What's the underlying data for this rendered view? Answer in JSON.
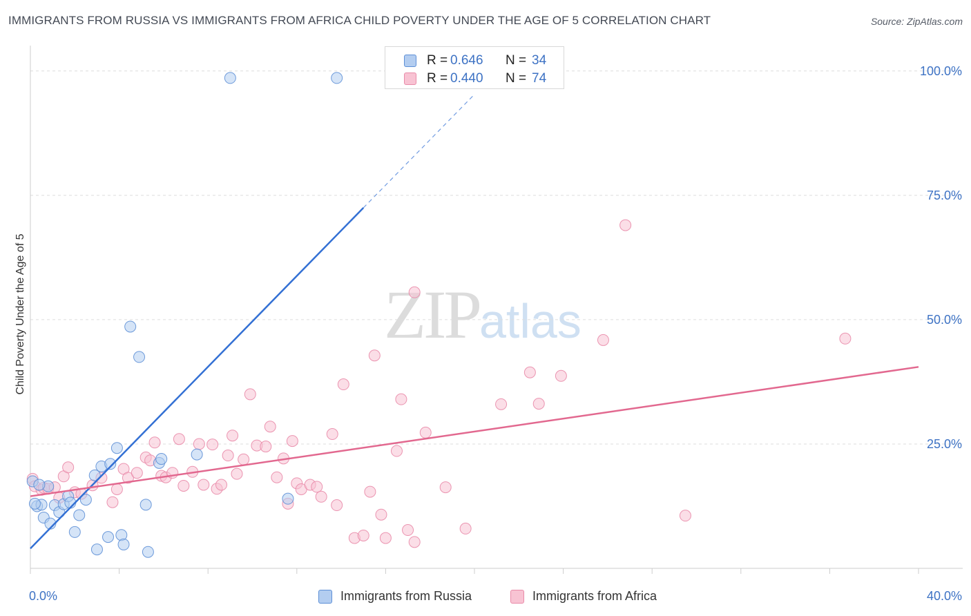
{
  "title": "IMMIGRANTS FROM RUSSIA VS IMMIGRANTS FROM AFRICA CHILD POVERTY UNDER THE AGE OF 5 CORRELATION CHART",
  "source": "Source: ZipAtlas.com",
  "watermark": {
    "zip": "ZIP",
    "atlas": "atlas"
  },
  "colors": {
    "russia_fill": "#b3cdf0",
    "russia_stroke": "#5d8fd6",
    "russia_line": "#3370d4",
    "africa_fill": "#f8c3d3",
    "africa_stroke": "#e98aa8",
    "africa_line": "#e2688f",
    "value_text": "#3d72c4",
    "grid": "#dddddd"
  },
  "legend_top": [
    {
      "series": "russia",
      "r_label": "R =",
      "r_value": "0.646",
      "n_label": "N =",
      "n_value": "34"
    },
    {
      "series": "africa",
      "r_label": "R =",
      "r_value": "0.440",
      "n_label": "N =",
      "n_value": "74"
    }
  ],
  "chart_data": {
    "type": "scatter",
    "title": "IMMIGRANTS FROM RUSSIA VS IMMIGRANTS FROM AFRICA CHILD POVERTY UNDER THE AGE OF 5 CORRELATION CHART",
    "xlabel": "",
    "ylabel": "Child Poverty Under the Age of 5",
    "xlim": [
      0,
      40
    ],
    "ylim": [
      0,
      104
    ],
    "x_tick_labels": [
      {
        "value": 0,
        "label": "0.0%"
      },
      {
        "value": 40,
        "label": "40.0%"
      }
    ],
    "y_tick_labels": [
      {
        "value": 25,
        "label": "25.0%"
      },
      {
        "value": 50,
        "label": "50.0%"
      },
      {
        "value": 75,
        "label": "75.0%"
      },
      {
        "value": 100,
        "label": "100.0%"
      }
    ],
    "grid": true,
    "legend_position": "bottom-center",
    "series": [
      {
        "name": "Immigrants from Russia",
        "key": "russia",
        "R": 0.646,
        "N": 34,
        "trend": {
          "x0": 0,
          "y0": 4,
          "x1": 15,
          "y1": 72.5,
          "dash_to_x": 20,
          "dash_to_y": 95.3
        },
        "points": [
          [
            0.1,
            17.5
          ],
          [
            0.3,
            12.5
          ],
          [
            0.5,
            12.8
          ],
          [
            0.6,
            10.2
          ],
          [
            0.8,
            16.5
          ],
          [
            0.9,
            9.0
          ],
          [
            1.1,
            12.7
          ],
          [
            1.3,
            11.3
          ],
          [
            1.5,
            12.9
          ],
          [
            1.7,
            14.5
          ],
          [
            1.8,
            13.2
          ],
          [
            2.0,
            7.3
          ],
          [
            2.2,
            10.7
          ],
          [
            2.5,
            13.8
          ],
          [
            2.9,
            18.7
          ],
          [
            3.0,
            3.8
          ],
          [
            3.2,
            20.5
          ],
          [
            3.5,
            6.3
          ],
          [
            3.6,
            21.0
          ],
          [
            3.9,
            24.2
          ],
          [
            4.1,
            6.7
          ],
          [
            4.2,
            4.8
          ],
          [
            4.5,
            48.6
          ],
          [
            4.9,
            42.5
          ],
          [
            5.2,
            12.8
          ],
          [
            5.3,
            3.3
          ],
          [
            5.8,
            21.2
          ],
          [
            5.9,
            22.0
          ],
          [
            7.5,
            22.9
          ],
          [
            9.0,
            98.6
          ],
          [
            11.6,
            14.0
          ],
          [
            13.8,
            98.6
          ],
          [
            0.2,
            13.0
          ],
          [
            0.4,
            16.8
          ]
        ]
      },
      {
        "name": "Immigrants from Africa",
        "key": "africa",
        "R": 0.44,
        "N": 74,
        "trend": {
          "x0": 0,
          "y0": 14.5,
          "x1": 40,
          "y1": 40.5
        },
        "points": [
          [
            0.1,
            18.0
          ],
          [
            0.2,
            16.5
          ],
          [
            0.5,
            15.8
          ],
          [
            0.6,
            16.2
          ],
          [
            0.8,
            16.0
          ],
          [
            1.1,
            16.3
          ],
          [
            1.3,
            14.2
          ],
          [
            1.5,
            18.5
          ],
          [
            1.7,
            20.3
          ],
          [
            2.0,
            15.3
          ],
          [
            2.3,
            15.0
          ],
          [
            2.8,
            16.7
          ],
          [
            3.2,
            18.2
          ],
          [
            3.7,
            13.3
          ],
          [
            3.9,
            15.9
          ],
          [
            4.2,
            20.0
          ],
          [
            4.4,
            18.2
          ],
          [
            4.8,
            19.2
          ],
          [
            5.2,
            22.3
          ],
          [
            5.4,
            21.7
          ],
          [
            5.6,
            25.3
          ],
          [
            5.9,
            18.6
          ],
          [
            6.1,
            18.3
          ],
          [
            6.4,
            19.2
          ],
          [
            6.7,
            26.0
          ],
          [
            6.9,
            16.6
          ],
          [
            7.3,
            19.4
          ],
          [
            7.6,
            25.0
          ],
          [
            7.8,
            16.8
          ],
          [
            8.2,
            24.9
          ],
          [
            8.4,
            16.0
          ],
          [
            8.6,
            16.8
          ],
          [
            8.9,
            22.7
          ],
          [
            9.1,
            26.7
          ],
          [
            9.3,
            19.0
          ],
          [
            9.6,
            21.9
          ],
          [
            9.9,
            35.0
          ],
          [
            10.2,
            24.7
          ],
          [
            10.6,
            24.5
          ],
          [
            10.8,
            28.5
          ],
          [
            11.1,
            18.3
          ],
          [
            11.4,
            22.1
          ],
          [
            11.6,
            13.0
          ],
          [
            11.8,
            25.6
          ],
          [
            12.0,
            17.1
          ],
          [
            12.2,
            15.9
          ],
          [
            12.6,
            16.8
          ],
          [
            12.9,
            16.4
          ],
          [
            13.1,
            14.4
          ],
          [
            13.6,
            27.0
          ],
          [
            13.8,
            12.7
          ],
          [
            14.1,
            37.0
          ],
          [
            14.6,
            6.1
          ],
          [
            15.0,
            6.6
          ],
          [
            15.3,
            15.4
          ],
          [
            15.5,
            42.8
          ],
          [
            15.8,
            10.8
          ],
          [
            16.0,
            6.1
          ],
          [
            16.5,
            23.6
          ],
          [
            16.7,
            34.0
          ],
          [
            17.0,
            7.7
          ],
          [
            17.3,
            5.3
          ],
          [
            17.3,
            55.5
          ],
          [
            17.8,
            27.3
          ],
          [
            18.7,
            16.3
          ],
          [
            19.6,
            8.0
          ],
          [
            21.2,
            33.0
          ],
          [
            22.5,
            39.4
          ],
          [
            22.9,
            33.1
          ],
          [
            23.9,
            38.7
          ],
          [
            25.8,
            45.9
          ],
          [
            26.8,
            69.0
          ],
          [
            29.5,
            10.6
          ],
          [
            36.7,
            46.2
          ]
        ]
      }
    ]
  },
  "legend_bottom": [
    {
      "series": "russia",
      "label": "Immigrants from Russia"
    },
    {
      "series": "africa",
      "label": "Immigrants from Africa"
    }
  ]
}
